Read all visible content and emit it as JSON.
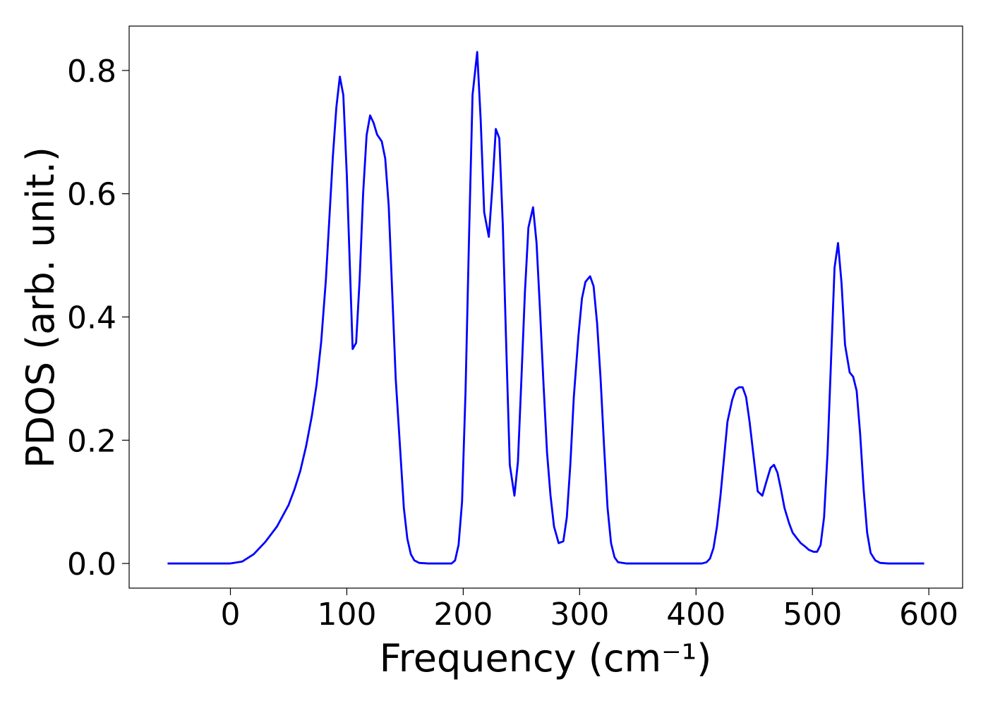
{
  "chart_data": {
    "type": "line",
    "x_label": "Frequency (cm⁻¹)",
    "y_label": "PDOS (arb. unit.)",
    "x": [
      -54,
      0,
      10,
      20,
      30,
      40,
      50,
      55,
      60,
      65,
      70,
      74,
      78,
      82,
      85,
      88,
      91,
      94,
      97,
      100,
      103,
      105,
      108,
      111,
      114,
      117,
      120,
      123,
      126,
      130,
      133,
      136,
      139,
      142,
      146,
      149,
      152,
      155,
      158,
      162,
      170,
      190,
      193,
      196,
      199,
      202,
      205,
      208,
      212,
      215,
      218,
      222,
      225,
      228,
      231,
      234,
      237,
      240,
      244,
      247,
      250,
      253,
      256,
      260,
      263,
      266,
      269,
      272,
      275,
      278,
      282,
      286,
      289,
      292,
      295,
      299,
      302,
      305,
      309,
      312,
      315,
      318,
      321,
      324,
      327,
      330,
      333,
      340,
      405,
      409,
      412,
      415,
      418,
      421,
      424,
      427,
      431,
      434,
      437,
      440,
      443,
      446,
      450,
      453,
      457,
      460,
      464,
      467,
      470,
      473,
      476,
      480,
      483,
      487,
      490,
      494,
      497,
      501,
      504,
      507,
      510,
      513,
      516,
      519,
      522,
      525,
      528,
      532,
      535,
      538,
      541,
      544,
      547,
      550,
      554,
      558,
      565,
      596
    ],
    "series": [
      {
        "color": "#0000ff",
        "values": [
          0,
          0,
          0.003,
          0.015,
          0.035,
          0.06,
          0.095,
          0.12,
          0.15,
          0.19,
          0.24,
          0.29,
          0.36,
          0.46,
          0.56,
          0.66,
          0.74,
          0.79,
          0.76,
          0.63,
          0.46,
          0.348,
          0.358,
          0.46,
          0.6,
          0.695,
          0.727,
          0.715,
          0.696,
          0.685,
          0.657,
          0.58,
          0.44,
          0.3,
          0.18,
          0.09,
          0.04,
          0.015,
          0.005,
          0.001,
          0,
          0,
          0.005,
          0.03,
          0.1,
          0.28,
          0.53,
          0.76,
          0.83,
          0.72,
          0.57,
          0.53,
          0.61,
          0.705,
          0.69,
          0.55,
          0.35,
          0.16,
          0.11,
          0.165,
          0.3,
          0.44,
          0.545,
          0.578,
          0.52,
          0.41,
          0.29,
          0.18,
          0.11,
          0.06,
          0.033,
          0.036,
          0.075,
          0.16,
          0.27,
          0.37,
          0.43,
          0.457,
          0.466,
          0.45,
          0.39,
          0.3,
          0.19,
          0.09,
          0.033,
          0.01,
          0.002,
          0,
          0,
          0.002,
          0.008,
          0.025,
          0.06,
          0.11,
          0.17,
          0.23,
          0.265,
          0.282,
          0.286,
          0.286,
          0.27,
          0.23,
          0.165,
          0.117,
          0.11,
          0.13,
          0.155,
          0.16,
          0.147,
          0.12,
          0.09,
          0.065,
          0.05,
          0.04,
          0.033,
          0.027,
          0.022,
          0.019,
          0.019,
          0.03,
          0.075,
          0.18,
          0.33,
          0.48,
          0.52,
          0.455,
          0.355,
          0.31,
          0.303,
          0.28,
          0.21,
          0.12,
          0.05,
          0.017,
          0.005,
          0.001,
          0,
          0
        ]
      }
    ],
    "xlim": [
      -87,
      629
    ],
    "xticks": [
      0,
      100,
      200,
      300,
      400,
      500,
      600
    ],
    "ylim": [
      -0.04,
      0.872
    ],
    "yticks": [
      {
        "value": 0,
        "label": "0.0"
      },
      0.2,
      0.4,
      0.6,
      0.8
    ],
    "grid": false
  }
}
